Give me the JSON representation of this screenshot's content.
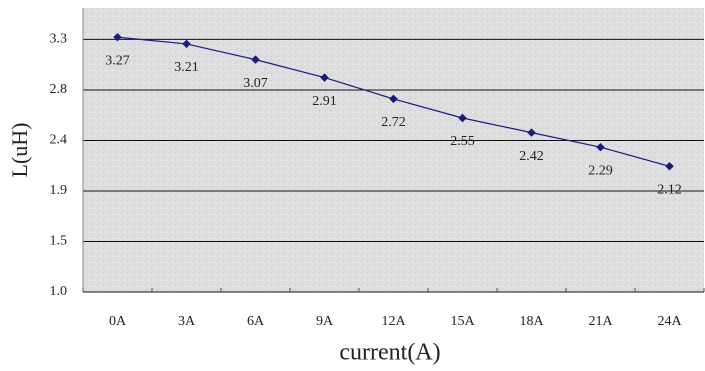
{
  "chart_data": {
    "type": "line",
    "x_label": "current(A)",
    "y_label": "L(uH)",
    "categories": [
      "0A",
      "3A",
      "6A",
      "9A",
      "12A",
      "15A",
      "18A",
      "21A",
      "24A"
    ],
    "series": [
      {
        "name": "L",
        "color": "#1a1a80",
        "values": [
          3.27,
          3.21,
          3.07,
          2.91,
          2.72,
          2.55,
          2.42,
          2.29,
          2.12
        ]
      }
    ],
    "ylim": [
      1.0,
      3.53
    ],
    "yticks": [
      {
        "value": 1.0,
        "label": "1.0"
      },
      {
        "value": 1.45,
        "label": "1.5"
      },
      1.9,
      {
        "value": 2.35,
        "label": "2.4"
      },
      2.8,
      {
        "value": 3.25,
        "label": "3.3"
      }
    ],
    "grid": true
  }
}
